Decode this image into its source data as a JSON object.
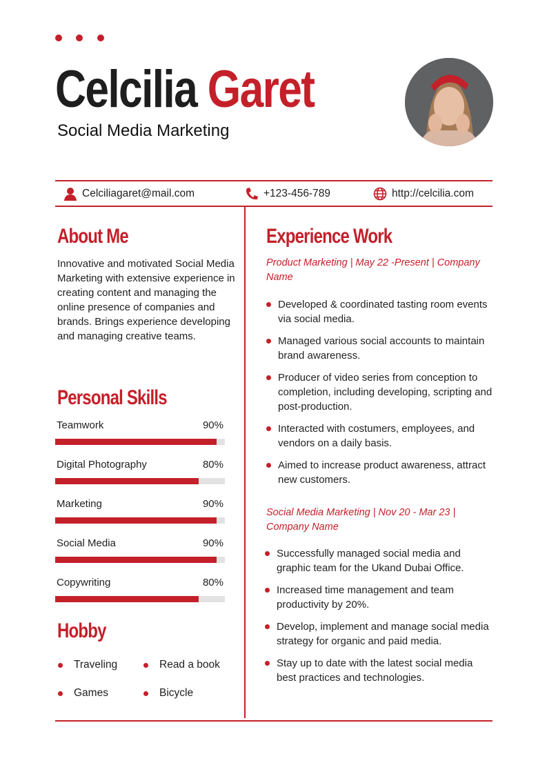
{
  "header": {
    "first_name": "Celcilia",
    "last_name": "Garet",
    "title": "Social Media Marketing"
  },
  "colors": {
    "accent": "#c4202a",
    "text": "#1e1e1e"
  },
  "contact": {
    "email": {
      "icon": "person-icon",
      "text": "Celciliagaret@mail.com"
    },
    "phone": {
      "icon": "phone-icon",
      "text": "+123-456-789"
    },
    "website": {
      "icon": "globe-icon",
      "text": "http://celcilia.com"
    }
  },
  "about": {
    "heading": "About Me",
    "text": "Innovative and motivated Social Media Marketing with extensive experience in creating content and managing the online presence of companies and brands. Brings experience developing and managing creative teams."
  },
  "skills": {
    "heading": "Personal Skills",
    "items": [
      {
        "label": "Teamwork",
        "percent_label": "90%",
        "value": 90
      },
      {
        "label": "Digital Photography",
        "percent_label": "80%",
        "value": 80
      },
      {
        "label": "Marketing",
        "percent_label": "90%",
        "value": 90
      },
      {
        "label": "Social Media",
        "percent_label": "90%",
        "value": 90
      },
      {
        "label": "Copywriting",
        "percent_label": "80%",
        "value": 80
      }
    ]
  },
  "hobby": {
    "heading": "Hobby",
    "items": [
      "Traveling",
      "Read a book",
      "Games",
      "Bicycle"
    ]
  },
  "experience": {
    "heading": "Experience Work",
    "jobs": [
      {
        "title": "Product Marketing | May 22 -Present | Company Name",
        "bullets": [
          "Developed & coordinated tasting room events via social media.",
          "Managed various social accounts to maintain brand awareness.",
          "Producer of video series from conception to completion, including developing, scripting and post-production.",
          "Interacted with costumers, employees, and vendors on a daily basis.",
          "Aimed to increase product awareness, attract new customers."
        ]
      },
      {
        "title": "Social Media Marketing | Nov 20 - Mar 23 | Company Name",
        "bullets": [
          "Successfully managed social media and graphic team for the Ukand Dubai Office.",
          "Increased time management and team productivity by 20%.",
          "Develop, implement and manage social media strategy for organic and paid media.",
          "Stay up to date with the latest social media best practices and technologies."
        ]
      }
    ]
  }
}
